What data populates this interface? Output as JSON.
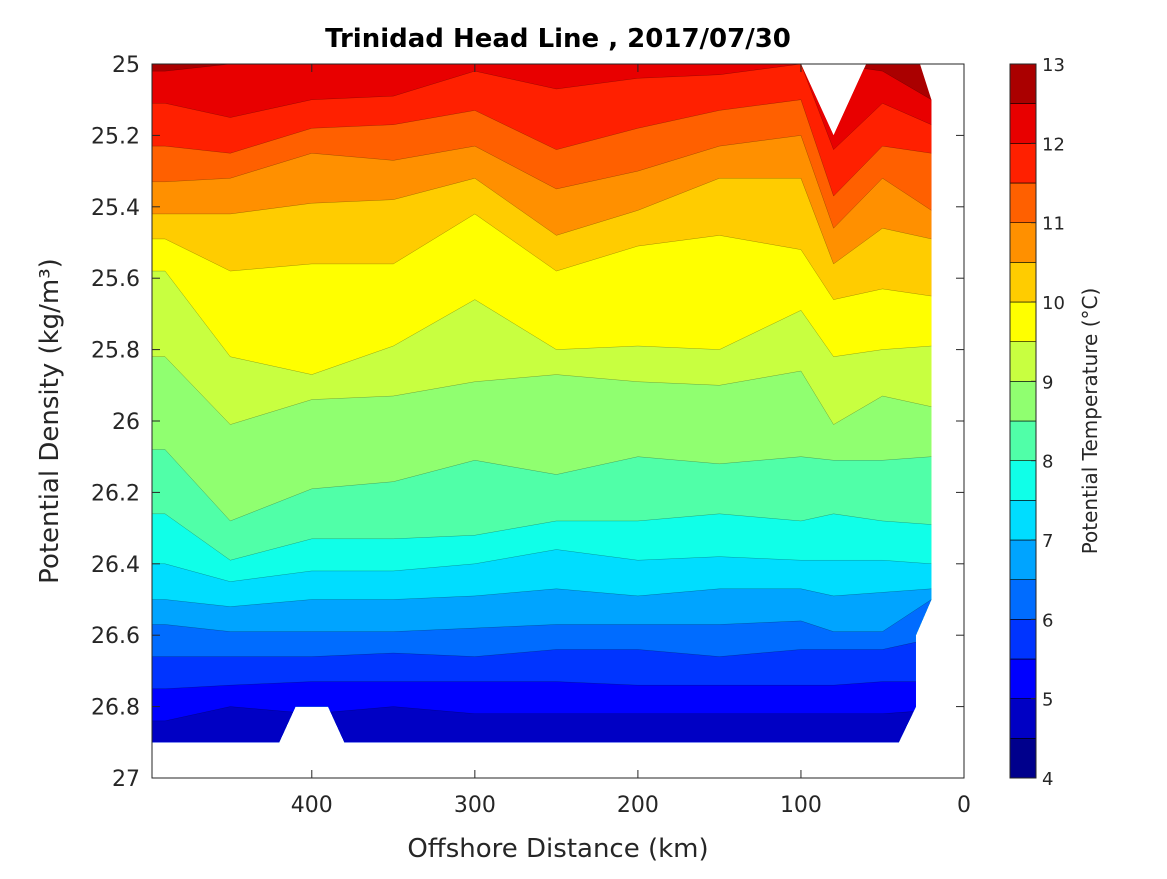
{
  "chart_data": {
    "type": "contourf",
    "title": "Trinidad Head Line , 2017/07/30",
    "xlabel": "Offshore Distance (km)",
    "ylabel": "Potential Density (kg/m³)",
    "xlim": [
      0,
      498
    ],
    "x_reversed": true,
    "ylim": [
      25,
      27
    ],
    "y_reversed": true,
    "xticks": [
      "0",
      "100",
      "200",
      "300",
      "400"
    ],
    "xtick_values": [
      0,
      100,
      200,
      300,
      400
    ],
    "yticks": [
      "25",
      "25.2",
      "25.4",
      "25.6",
      "25.8",
      "26",
      "26.2",
      "26.4",
      "26.6",
      "26.8",
      "27"
    ],
    "ytick_values": [
      25,
      25.2,
      25.4,
      25.6,
      25.8,
      26,
      26.2,
      26.4,
      26.6,
      26.8,
      27
    ],
    "colorbar": {
      "label": "Potential Temperature (°C)",
      "range": [
        4,
        13
      ],
      "ticks": [
        "4",
        "5",
        "6",
        "7",
        "8",
        "9",
        "10",
        "11",
        "12",
        "13"
      ],
      "tick_values": [
        4,
        5,
        6,
        7,
        8,
        9,
        10,
        11,
        12,
        13
      ],
      "step": 0.5,
      "colors": [
        "#00008C",
        "#0000C4",
        "#0000FF",
        "#0034FF",
        "#006CFF",
        "#00A4FF",
        "#00DDFF",
        "#10FFE8",
        "#50FFA8",
        "#90FF70",
        "#C8FF40",
        "#FFFF00",
        "#FFCC00",
        "#FF9000",
        "#FF6000",
        "#FF2000",
        "#E80000",
        "#AA0000"
      ]
    },
    "domain_outline": [
      [
        498,
        25
      ],
      [
        100,
        25
      ],
      [
        80,
        25.2
      ],
      [
        60,
        25
      ],
      [
        27,
        25
      ],
      [
        20,
        25.1
      ],
      [
        20,
        26.5
      ],
      [
        29.5,
        26.6
      ],
      [
        29.5,
        26.8
      ],
      [
        40,
        26.9
      ],
      [
        380,
        26.9
      ],
      [
        390,
        26.8
      ],
      [
        410,
        26.8
      ],
      [
        420,
        26.9
      ],
      [
        498,
        26.9
      ]
    ],
    "x": [
      498,
      490,
      450,
      400,
      350,
      300,
      250,
      200,
      150,
      100,
      80,
      50,
      20
    ],
    "isotherms": [
      {
        "level": 12.5,
        "density": [
          25.02,
          25.02,
          25.0,
          25.0,
          25.0,
          25.0,
          25.0,
          25.0,
          25.0,
          25.0,
          25.0,
          25.02,
          25.1
        ]
      },
      {
        "level": 12.0,
        "density": [
          25.11,
          25.11,
          25.15,
          25.1,
          25.09,
          25.02,
          25.07,
          25.04,
          25.03,
          25.0,
          25.24,
          25.11,
          25.17
        ]
      },
      {
        "level": 11.5,
        "density": [
          25.23,
          25.23,
          25.25,
          25.18,
          25.17,
          25.13,
          25.24,
          25.18,
          25.13,
          25.1,
          25.37,
          25.23,
          25.25
        ]
      },
      {
        "level": 11.0,
        "density": [
          25.33,
          25.33,
          25.32,
          25.25,
          25.27,
          25.23,
          25.35,
          25.3,
          25.23,
          25.2,
          25.46,
          25.32,
          25.41
        ]
      },
      {
        "level": 10.5,
        "density": [
          25.42,
          25.42,
          25.42,
          25.39,
          25.38,
          25.32,
          25.48,
          25.41,
          25.32,
          25.32,
          25.56,
          25.46,
          25.49
        ]
      },
      {
        "level": 10.0,
        "density": [
          25.49,
          25.49,
          25.58,
          25.56,
          25.56,
          25.42,
          25.58,
          25.51,
          25.48,
          25.52,
          25.66,
          25.63,
          25.65
        ]
      },
      {
        "level": 9.5,
        "density": [
          25.58,
          25.58,
          25.82,
          25.87,
          25.79,
          25.66,
          25.8,
          25.79,
          25.8,
          25.69,
          25.82,
          25.8,
          25.79
        ]
      },
      {
        "level": 9.0,
        "density": [
          25.82,
          25.82,
          26.01,
          25.94,
          25.93,
          25.89,
          25.87,
          25.89,
          25.9,
          25.86,
          26.01,
          25.93,
          25.96
        ]
      },
      {
        "level": 8.5,
        "density": [
          26.08,
          26.08,
          26.28,
          26.19,
          26.17,
          26.11,
          26.15,
          26.1,
          26.12,
          26.1,
          26.11,
          26.11,
          26.1
        ]
      },
      {
        "level": 8.0,
        "density": [
          26.26,
          26.26,
          26.39,
          26.33,
          26.33,
          26.32,
          26.28,
          26.28,
          26.26,
          26.28,
          26.26,
          26.28,
          26.29
        ]
      },
      {
        "level": 7.5,
        "density": [
          26.4,
          26.4,
          26.45,
          26.42,
          26.42,
          26.4,
          26.36,
          26.39,
          26.38,
          26.39,
          26.39,
          26.39,
          26.4
        ]
      },
      {
        "level": 7.0,
        "density": [
          26.5,
          26.5,
          26.52,
          26.5,
          26.5,
          26.49,
          26.47,
          26.49,
          26.47,
          26.47,
          26.49,
          26.48,
          26.47
        ]
      },
      {
        "level": 6.5,
        "density": [
          26.57,
          26.57,
          26.59,
          26.59,
          26.59,
          26.58,
          26.57,
          26.57,
          26.57,
          26.56,
          26.59,
          26.59,
          26.5
        ]
      },
      {
        "level": 6.0,
        "density": [
          26.66,
          26.66,
          26.66,
          26.66,
          26.65,
          26.66,
          26.64,
          26.64,
          26.66,
          26.64,
          26.64,
          26.64,
          26.61
        ]
      },
      {
        "level": 5.5,
        "density": [
          26.75,
          26.75,
          26.74,
          26.73,
          26.73,
          26.73,
          26.73,
          26.74,
          26.74,
          26.74,
          26.74,
          26.73,
          26.73
        ]
      },
      {
        "level": 5.0,
        "density": [
          26.84,
          26.84,
          26.8,
          26.82,
          26.8,
          26.82,
          26.82,
          26.82,
          26.82,
          26.82,
          26.82,
          26.82,
          26.81
        ]
      }
    ],
    "top_band_level": 12.5
  }
}
